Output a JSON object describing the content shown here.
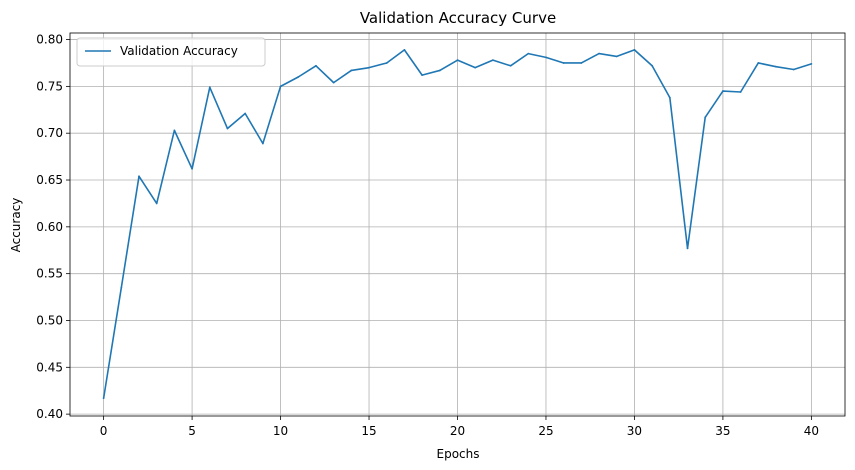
{
  "chart_data": {
    "type": "line",
    "title": "Validation Accuracy Curve",
    "xlabel": "Epochs",
    "ylabel": "Accuracy",
    "xlim": [
      -1.9,
      41.9
    ],
    "ylim": [
      0.398,
      0.807
    ],
    "xticks": [
      0,
      5,
      10,
      15,
      20,
      25,
      30,
      35,
      40
    ],
    "yticks": [
      0.4,
      0.45,
      0.5,
      0.55,
      0.6,
      0.65,
      0.7,
      0.75,
      0.8
    ],
    "grid": true,
    "legend_position": "top-left",
    "series": [
      {
        "name": "Validation Accuracy",
        "color": "#1f77b4",
        "x": [
          0,
          1,
          2,
          3,
          4,
          5,
          6,
          7,
          8,
          9,
          10,
          11,
          12,
          13,
          14,
          15,
          16,
          17,
          18,
          19,
          20,
          21,
          22,
          23,
          24,
          25,
          26,
          27,
          28,
          29,
          30,
          31,
          32,
          33,
          34,
          35,
          36,
          37,
          38,
          39,
          40
        ],
        "values": [
          0.417,
          0.535,
          0.654,
          0.625,
          0.703,
          0.662,
          0.749,
          0.705,
          0.721,
          0.689,
          0.75,
          0.76,
          0.772,
          0.754,
          0.767,
          0.77,
          0.775,
          0.789,
          0.762,
          0.767,
          0.778,
          0.77,
          0.778,
          0.772,
          0.785,
          0.781,
          0.775,
          0.775,
          0.785,
          0.782,
          0.789,
          0.772,
          0.738,
          0.577,
          0.717,
          0.745,
          0.744,
          0.775,
          0.771,
          0.768,
          0.774
        ]
      }
    ]
  }
}
